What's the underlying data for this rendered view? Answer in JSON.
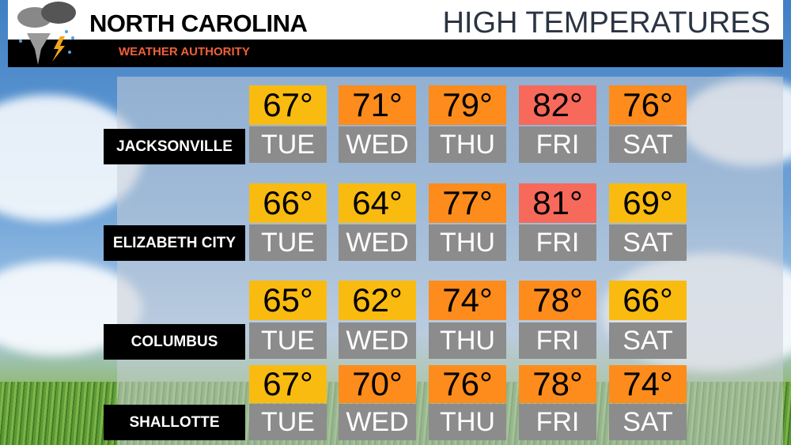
{
  "header": {
    "title": "NORTH CAROLINA",
    "tagline": "WEATHER AUTHORITY",
    "heading": "HIGH TEMPERATURES"
  },
  "cities": [
    {
      "name": "JACKSONVILLE",
      "days": [
        {
          "temp": "67°",
          "day": "TUE",
          "color": "#f9bb0f"
        },
        {
          "temp": "71°",
          "day": "WED",
          "color": "#fd8c1c"
        },
        {
          "temp": "79°",
          "day": "THU",
          "color": "#fd8c1c"
        },
        {
          "temp": "82°",
          "day": "FRI",
          "color": "#f7695a"
        },
        {
          "temp": "76°",
          "day": "SAT",
          "color": "#fd8c1c"
        }
      ]
    },
    {
      "name": "ELIZABETH CITY",
      "days": [
        {
          "temp": "66°",
          "day": "TUE",
          "color": "#f9bb0f"
        },
        {
          "temp": "64°",
          "day": "WED",
          "color": "#f9bb0f"
        },
        {
          "temp": "77°",
          "day": "THU",
          "color": "#fd8c1c"
        },
        {
          "temp": "81°",
          "day": "FRI",
          "color": "#f7695a"
        },
        {
          "temp": "69°",
          "day": "SAT",
          "color": "#f9bb0f"
        }
      ]
    },
    {
      "name": "COLUMBUS",
      "days": [
        {
          "temp": "65°",
          "day": "TUE",
          "color": "#f9bb0f"
        },
        {
          "temp": "62°",
          "day": "WED",
          "color": "#f9bb0f"
        },
        {
          "temp": "74°",
          "day": "THU",
          "color": "#fd8c1c"
        },
        {
          "temp": "78°",
          "day": "FRI",
          "color": "#fd8c1c"
        },
        {
          "temp": "66°",
          "day": "SAT",
          "color": "#f9bb0f"
        }
      ]
    },
    {
      "name": "SHALLOTTE",
      "days": [
        {
          "temp": "67°",
          "day": "TUE",
          "color": "#f9bb0f"
        },
        {
          "temp": "70°",
          "day": "WED",
          "color": "#fd8c1c"
        },
        {
          "temp": "76°",
          "day": "THU",
          "color": "#fd8c1c"
        },
        {
          "temp": "78°",
          "day": "FRI",
          "color": "#fd8c1c"
        },
        {
          "temp": "74°",
          "day": "SAT",
          "color": "#fd8c1c"
        }
      ]
    }
  ]
}
